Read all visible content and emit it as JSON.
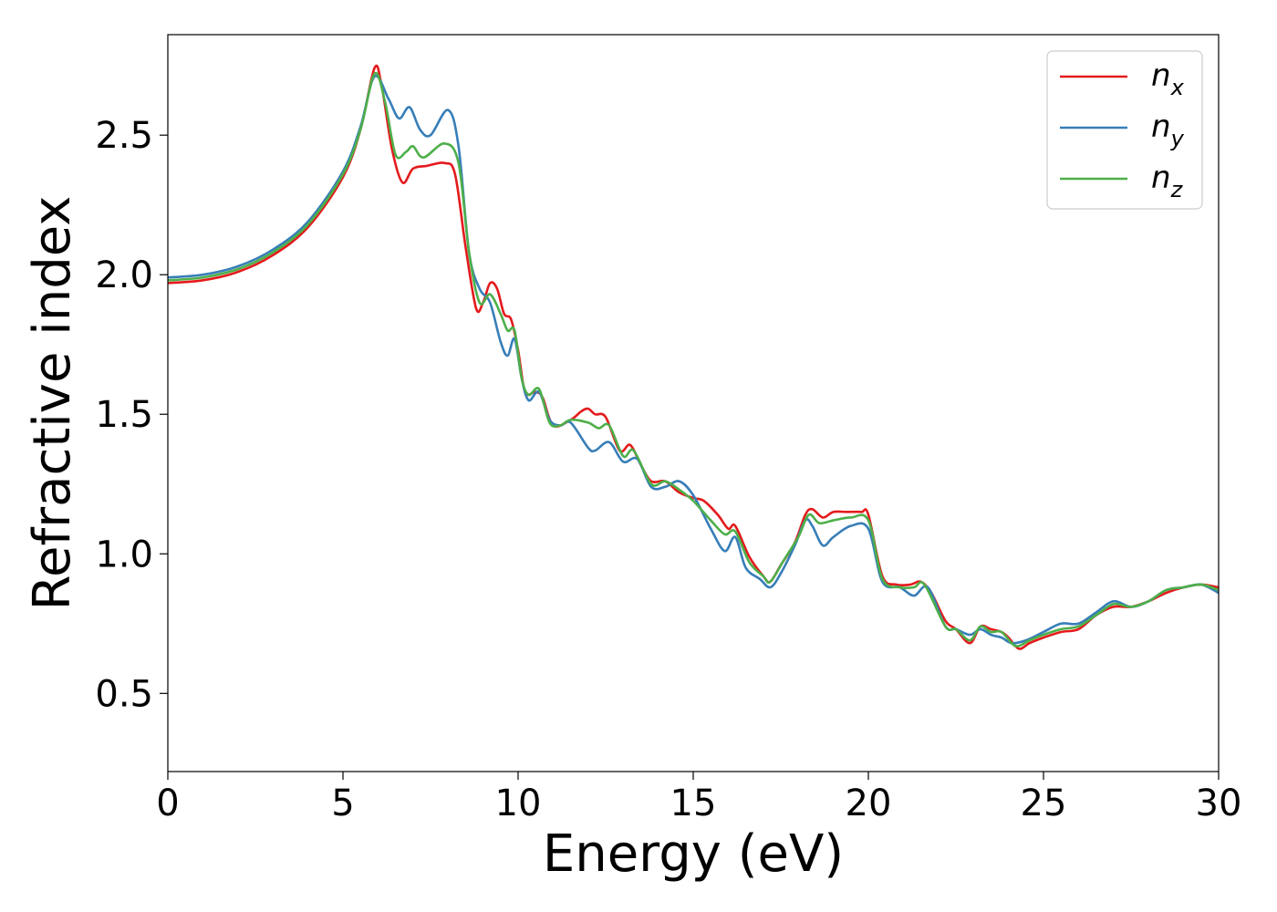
{
  "chart_data": {
    "type": "line",
    "xlabel": "Energy (eV)",
    "ylabel": "Refractive index",
    "xlim": [
      0,
      30
    ],
    "ylim": [
      0.22,
      2.86
    ],
    "xticks": [
      0,
      5,
      10,
      15,
      20,
      25,
      30
    ],
    "xtick_labels": [
      "0",
      "5",
      "10",
      "15",
      "20",
      "25",
      "30"
    ],
    "yticks": [
      0.5,
      1.0,
      1.5,
      2.0,
      2.5
    ],
    "ytick_labels": [
      "0.5",
      "1.0",
      "1.5",
      "2.0",
      "2.5"
    ],
    "grid": false,
    "legend_position": "top-right",
    "series": [
      {
        "name": "n",
        "subscript": "x",
        "color": "#e41a1c",
        "points": [
          [
            0,
            1.97
          ],
          [
            1,
            1.98
          ],
          [
            2,
            2.01
          ],
          [
            3,
            2.07
          ],
          [
            4,
            2.17
          ],
          [
            5,
            2.35
          ],
          [
            5.5,
            2.52
          ],
          [
            5.9,
            2.74
          ],
          [
            6.1,
            2.68
          ],
          [
            6.4,
            2.45
          ],
          [
            6.7,
            2.33
          ],
          [
            7.0,
            2.38
          ],
          [
            7.4,
            2.39
          ],
          [
            7.9,
            2.4
          ],
          [
            8.2,
            2.36
          ],
          [
            8.5,
            2.1
          ],
          [
            8.8,
            1.88
          ],
          [
            9.0,
            1.9
          ],
          [
            9.2,
            1.97
          ],
          [
            9.4,
            1.95
          ],
          [
            9.6,
            1.86
          ],
          [
            9.8,
            1.84
          ],
          [
            10.0,
            1.73
          ],
          [
            10.2,
            1.58
          ],
          [
            10.5,
            1.58
          ],
          [
            10.7,
            1.56
          ],
          [
            11.0,
            1.46
          ],
          [
            11.5,
            1.48
          ],
          [
            11.8,
            1.51
          ],
          [
            12.0,
            1.52
          ],
          [
            12.2,
            1.5
          ],
          [
            12.5,
            1.49
          ],
          [
            12.9,
            1.37
          ],
          [
            13.2,
            1.39
          ],
          [
            13.5,
            1.32
          ],
          [
            13.8,
            1.26
          ],
          [
            14.2,
            1.26
          ],
          [
            14.6,
            1.22
          ],
          [
            15.0,
            1.2
          ],
          [
            15.3,
            1.19
          ],
          [
            15.7,
            1.14
          ],
          [
            16.0,
            1.09
          ],
          [
            16.2,
            1.1
          ],
          [
            16.6,
            0.99
          ],
          [
            17.0,
            0.92
          ],
          [
            17.2,
            0.9
          ],
          [
            17.5,
            0.96
          ],
          [
            17.9,
            1.04
          ],
          [
            18.2,
            1.14
          ],
          [
            18.4,
            1.16
          ],
          [
            18.7,
            1.13
          ],
          [
            19.0,
            1.15
          ],
          [
            19.4,
            1.15
          ],
          [
            19.8,
            1.15
          ],
          [
            20.0,
            1.14
          ],
          [
            20.4,
            0.92
          ],
          [
            20.8,
            0.89
          ],
          [
            21.2,
            0.89
          ],
          [
            21.5,
            0.9
          ],
          [
            21.8,
            0.86
          ],
          [
            22.2,
            0.76
          ],
          [
            22.5,
            0.73
          ],
          [
            22.9,
            0.68
          ],
          [
            23.2,
            0.74
          ],
          [
            23.5,
            0.73
          ],
          [
            23.8,
            0.72
          ],
          [
            24.0,
            0.7
          ],
          [
            24.3,
            0.66
          ],
          [
            24.6,
            0.68
          ],
          [
            25.0,
            0.7
          ],
          [
            25.5,
            0.72
          ],
          [
            26.0,
            0.73
          ],
          [
            26.5,
            0.78
          ],
          [
            27.0,
            0.81
          ],
          [
            27.5,
            0.81
          ],
          [
            28.0,
            0.83
          ],
          [
            28.5,
            0.86
          ],
          [
            29.0,
            0.88
          ],
          [
            29.5,
            0.89
          ],
          [
            30.0,
            0.88
          ]
        ]
      },
      {
        "name": "n",
        "subscript": "y",
        "color": "#377eb8",
        "points": [
          [
            0,
            1.99
          ],
          [
            1,
            2.0
          ],
          [
            2,
            2.03
          ],
          [
            3,
            2.09
          ],
          [
            4,
            2.19
          ],
          [
            5,
            2.37
          ],
          [
            5.5,
            2.53
          ],
          [
            5.9,
            2.71
          ],
          [
            6.3,
            2.63
          ],
          [
            6.6,
            2.56
          ],
          [
            6.9,
            2.6
          ],
          [
            7.2,
            2.52
          ],
          [
            7.5,
            2.5
          ],
          [
            8.0,
            2.59
          ],
          [
            8.3,
            2.46
          ],
          [
            8.6,
            2.08
          ],
          [
            8.9,
            1.95
          ],
          [
            9.2,
            1.9
          ],
          [
            9.5,
            1.76
          ],
          [
            9.7,
            1.71
          ],
          [
            9.9,
            1.77
          ],
          [
            10.1,
            1.63
          ],
          [
            10.3,
            1.55
          ],
          [
            10.6,
            1.58
          ],
          [
            10.9,
            1.48
          ],
          [
            11.2,
            1.46
          ],
          [
            11.5,
            1.47
          ],
          [
            12.0,
            1.38
          ],
          [
            12.2,
            1.37
          ],
          [
            12.6,
            1.4
          ],
          [
            13.0,
            1.33
          ],
          [
            13.4,
            1.34
          ],
          [
            13.8,
            1.24
          ],
          [
            14.2,
            1.24
          ],
          [
            14.6,
            1.26
          ],
          [
            15.0,
            1.21
          ],
          [
            15.5,
            1.09
          ],
          [
            15.9,
            1.01
          ],
          [
            16.2,
            1.06
          ],
          [
            16.5,
            0.95
          ],
          [
            16.9,
            0.91
          ],
          [
            17.2,
            0.88
          ],
          [
            17.5,
            0.93
          ],
          [
            17.9,
            1.03
          ],
          [
            18.2,
            1.12
          ],
          [
            18.4,
            1.1
          ],
          [
            18.7,
            1.03
          ],
          [
            19.0,
            1.06
          ],
          [
            19.5,
            1.1
          ],
          [
            20.0,
            1.09
          ],
          [
            20.4,
            0.9
          ],
          [
            20.9,
            0.88
          ],
          [
            21.3,
            0.85
          ],
          [
            21.7,
            0.88
          ],
          [
            22.2,
            0.74
          ],
          [
            22.5,
            0.73
          ],
          [
            22.9,
            0.71
          ],
          [
            23.2,
            0.73
          ],
          [
            23.5,
            0.71
          ],
          [
            23.8,
            0.7
          ],
          [
            24.1,
            0.68
          ],
          [
            24.5,
            0.69
          ],
          [
            25.0,
            0.72
          ],
          [
            25.5,
            0.75
          ],
          [
            26.0,
            0.75
          ],
          [
            26.5,
            0.79
          ],
          [
            27.0,
            0.83
          ],
          [
            27.5,
            0.81
          ],
          [
            28.0,
            0.83
          ],
          [
            28.5,
            0.87
          ],
          [
            29.0,
            0.88
          ],
          [
            29.5,
            0.89
          ],
          [
            30.0,
            0.86
          ]
        ]
      },
      {
        "name": "n",
        "subscript": "z",
        "color": "#4daf4a",
        "points": [
          [
            0,
            1.98
          ],
          [
            1,
            1.99
          ],
          [
            2,
            2.02
          ],
          [
            3,
            2.08
          ],
          [
            4,
            2.18
          ],
          [
            5,
            2.36
          ],
          [
            5.5,
            2.52
          ],
          [
            5.9,
            2.72
          ],
          [
            6.2,
            2.62
          ],
          [
            6.5,
            2.43
          ],
          [
            6.8,
            2.44
          ],
          [
            7.0,
            2.46
          ],
          [
            7.3,
            2.42
          ],
          [
            7.9,
            2.47
          ],
          [
            8.3,
            2.4
          ],
          [
            8.6,
            2.08
          ],
          [
            8.9,
            1.9
          ],
          [
            9.2,
            1.93
          ],
          [
            9.5,
            1.86
          ],
          [
            9.7,
            1.8
          ],
          [
            9.9,
            1.8
          ],
          [
            10.1,
            1.63
          ],
          [
            10.3,
            1.57
          ],
          [
            10.6,
            1.59
          ],
          [
            10.9,
            1.47
          ],
          [
            11.2,
            1.46
          ],
          [
            11.5,
            1.48
          ],
          [
            12.0,
            1.47
          ],
          [
            12.3,
            1.45
          ],
          [
            12.6,
            1.46
          ],
          [
            13.0,
            1.35
          ],
          [
            13.3,
            1.37
          ],
          [
            13.8,
            1.25
          ],
          [
            14.2,
            1.26
          ],
          [
            14.6,
            1.23
          ],
          [
            15.0,
            1.19
          ],
          [
            15.5,
            1.12
          ],
          [
            15.9,
            1.07
          ],
          [
            16.2,
            1.08
          ],
          [
            16.6,
            0.97
          ],
          [
            17.0,
            0.92
          ],
          [
            17.2,
            0.9
          ],
          [
            17.6,
            0.98
          ],
          [
            18.0,
            1.06
          ],
          [
            18.3,
            1.14
          ],
          [
            18.6,
            1.11
          ],
          [
            19.0,
            1.12
          ],
          [
            19.5,
            1.13
          ],
          [
            20.0,
            1.12
          ],
          [
            20.4,
            0.91
          ],
          [
            20.9,
            0.88
          ],
          [
            21.3,
            0.88
          ],
          [
            21.6,
            0.89
          ],
          [
            22.2,
            0.74
          ],
          [
            22.5,
            0.73
          ],
          [
            22.9,
            0.69
          ],
          [
            23.2,
            0.74
          ],
          [
            23.5,
            0.72
          ],
          [
            23.8,
            0.72
          ],
          [
            24.2,
            0.67
          ],
          [
            24.6,
            0.69
          ],
          [
            25.0,
            0.71
          ],
          [
            25.5,
            0.73
          ],
          [
            26.0,
            0.74
          ],
          [
            26.5,
            0.78
          ],
          [
            27.0,
            0.82
          ],
          [
            27.5,
            0.81
          ],
          [
            28.0,
            0.83
          ],
          [
            28.5,
            0.87
          ],
          [
            29.0,
            0.88
          ],
          [
            29.5,
            0.89
          ],
          [
            30.0,
            0.87
          ]
        ]
      }
    ]
  }
}
